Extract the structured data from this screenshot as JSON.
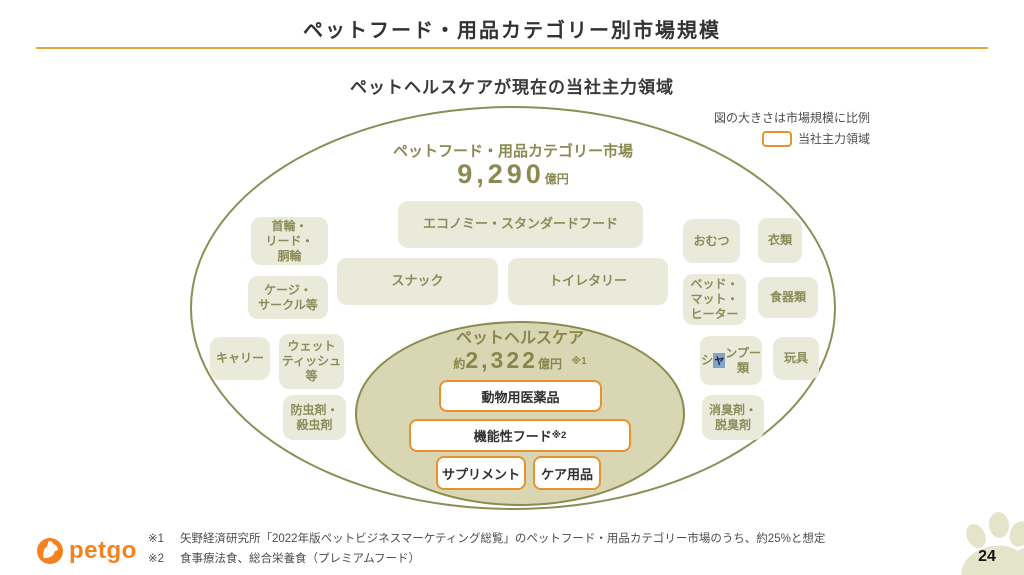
{
  "slide": {
    "title": "ペットフード・用品カテゴリー別市場規模",
    "subtitle": "ペットヘルスケアが現在の当社主力領域",
    "page_number": "24"
  },
  "legend": {
    "size_note": "図の大きさは市場規模に比例",
    "focus_label": "当社主力領域"
  },
  "outer_market": {
    "label": "ペットフード・用品カテゴリー市場",
    "value": "9,290",
    "unit": "億円"
  },
  "inner_market": {
    "label": "ペットヘルスケア",
    "prefix": "約",
    "value": "2,322",
    "unit": "億円",
    "note_ref": "※1"
  },
  "categories": [
    {
      "id": "collar-lead-harness",
      "label": "首輪・\nリード・\n胴輪"
    },
    {
      "id": "cage-circle",
      "label": "ケージ・\nサークル等"
    },
    {
      "id": "carry",
      "label": "キャリー"
    },
    {
      "id": "wet-tissue",
      "label": "ウェット\nティッシュ\n等"
    },
    {
      "id": "insect-repellent",
      "label": "防虫剤・\n殺虫剤"
    },
    {
      "id": "economy-standard-food",
      "label": "エコノミー・スタンダードフード"
    },
    {
      "id": "snack",
      "label": "スナック"
    },
    {
      "id": "toiletry",
      "label": "トイレタリー"
    },
    {
      "id": "diaper",
      "label": "おむつ"
    },
    {
      "id": "clothing",
      "label": "衣類"
    },
    {
      "id": "bed-mat-heater",
      "label": "ベッド・\nマット・\nヒーター"
    },
    {
      "id": "tableware",
      "label": "食器類"
    },
    {
      "id": "shampoo",
      "label": "シャンプー\n類",
      "highlight_char": "ャ"
    },
    {
      "id": "toy",
      "label": "玩具"
    },
    {
      "id": "deodorizer",
      "label": "消臭剤・\n脱臭剤"
    }
  ],
  "focus_items": [
    {
      "id": "animal-medicine",
      "label": "動物用医薬品",
      "note_ref": ""
    },
    {
      "id": "functional-food",
      "label": "機能性フード",
      "note_ref": "※2"
    },
    {
      "id": "supplement",
      "label": "サプリメント",
      "note_ref": ""
    },
    {
      "id": "care-goods",
      "label": "ケア用品",
      "note_ref": ""
    }
  ],
  "footnotes": [
    {
      "ref": "※1",
      "text": "矢野経済研究所「2022年版ペットビジネスマーケティング総覧」のペットフード・用品カテゴリー市場のうち、約25%と想定"
    },
    {
      "ref": "※2",
      "text": "食事療法食、総合栄養食（プレミアムフード）"
    }
  ],
  "logo": {
    "brand": "petgo"
  },
  "colors": {
    "accent_orange": "#E8922F",
    "rule_orange": "#E9A440",
    "olive_text": "#8A8A52",
    "category_fill": "#EAEADB",
    "inner_ellipse_fill": "#D9D7B3",
    "ellipse_border": "#8D8D57",
    "paw_fill": "#E4E4CB",
    "logo_orange": "#F5821F"
  }
}
